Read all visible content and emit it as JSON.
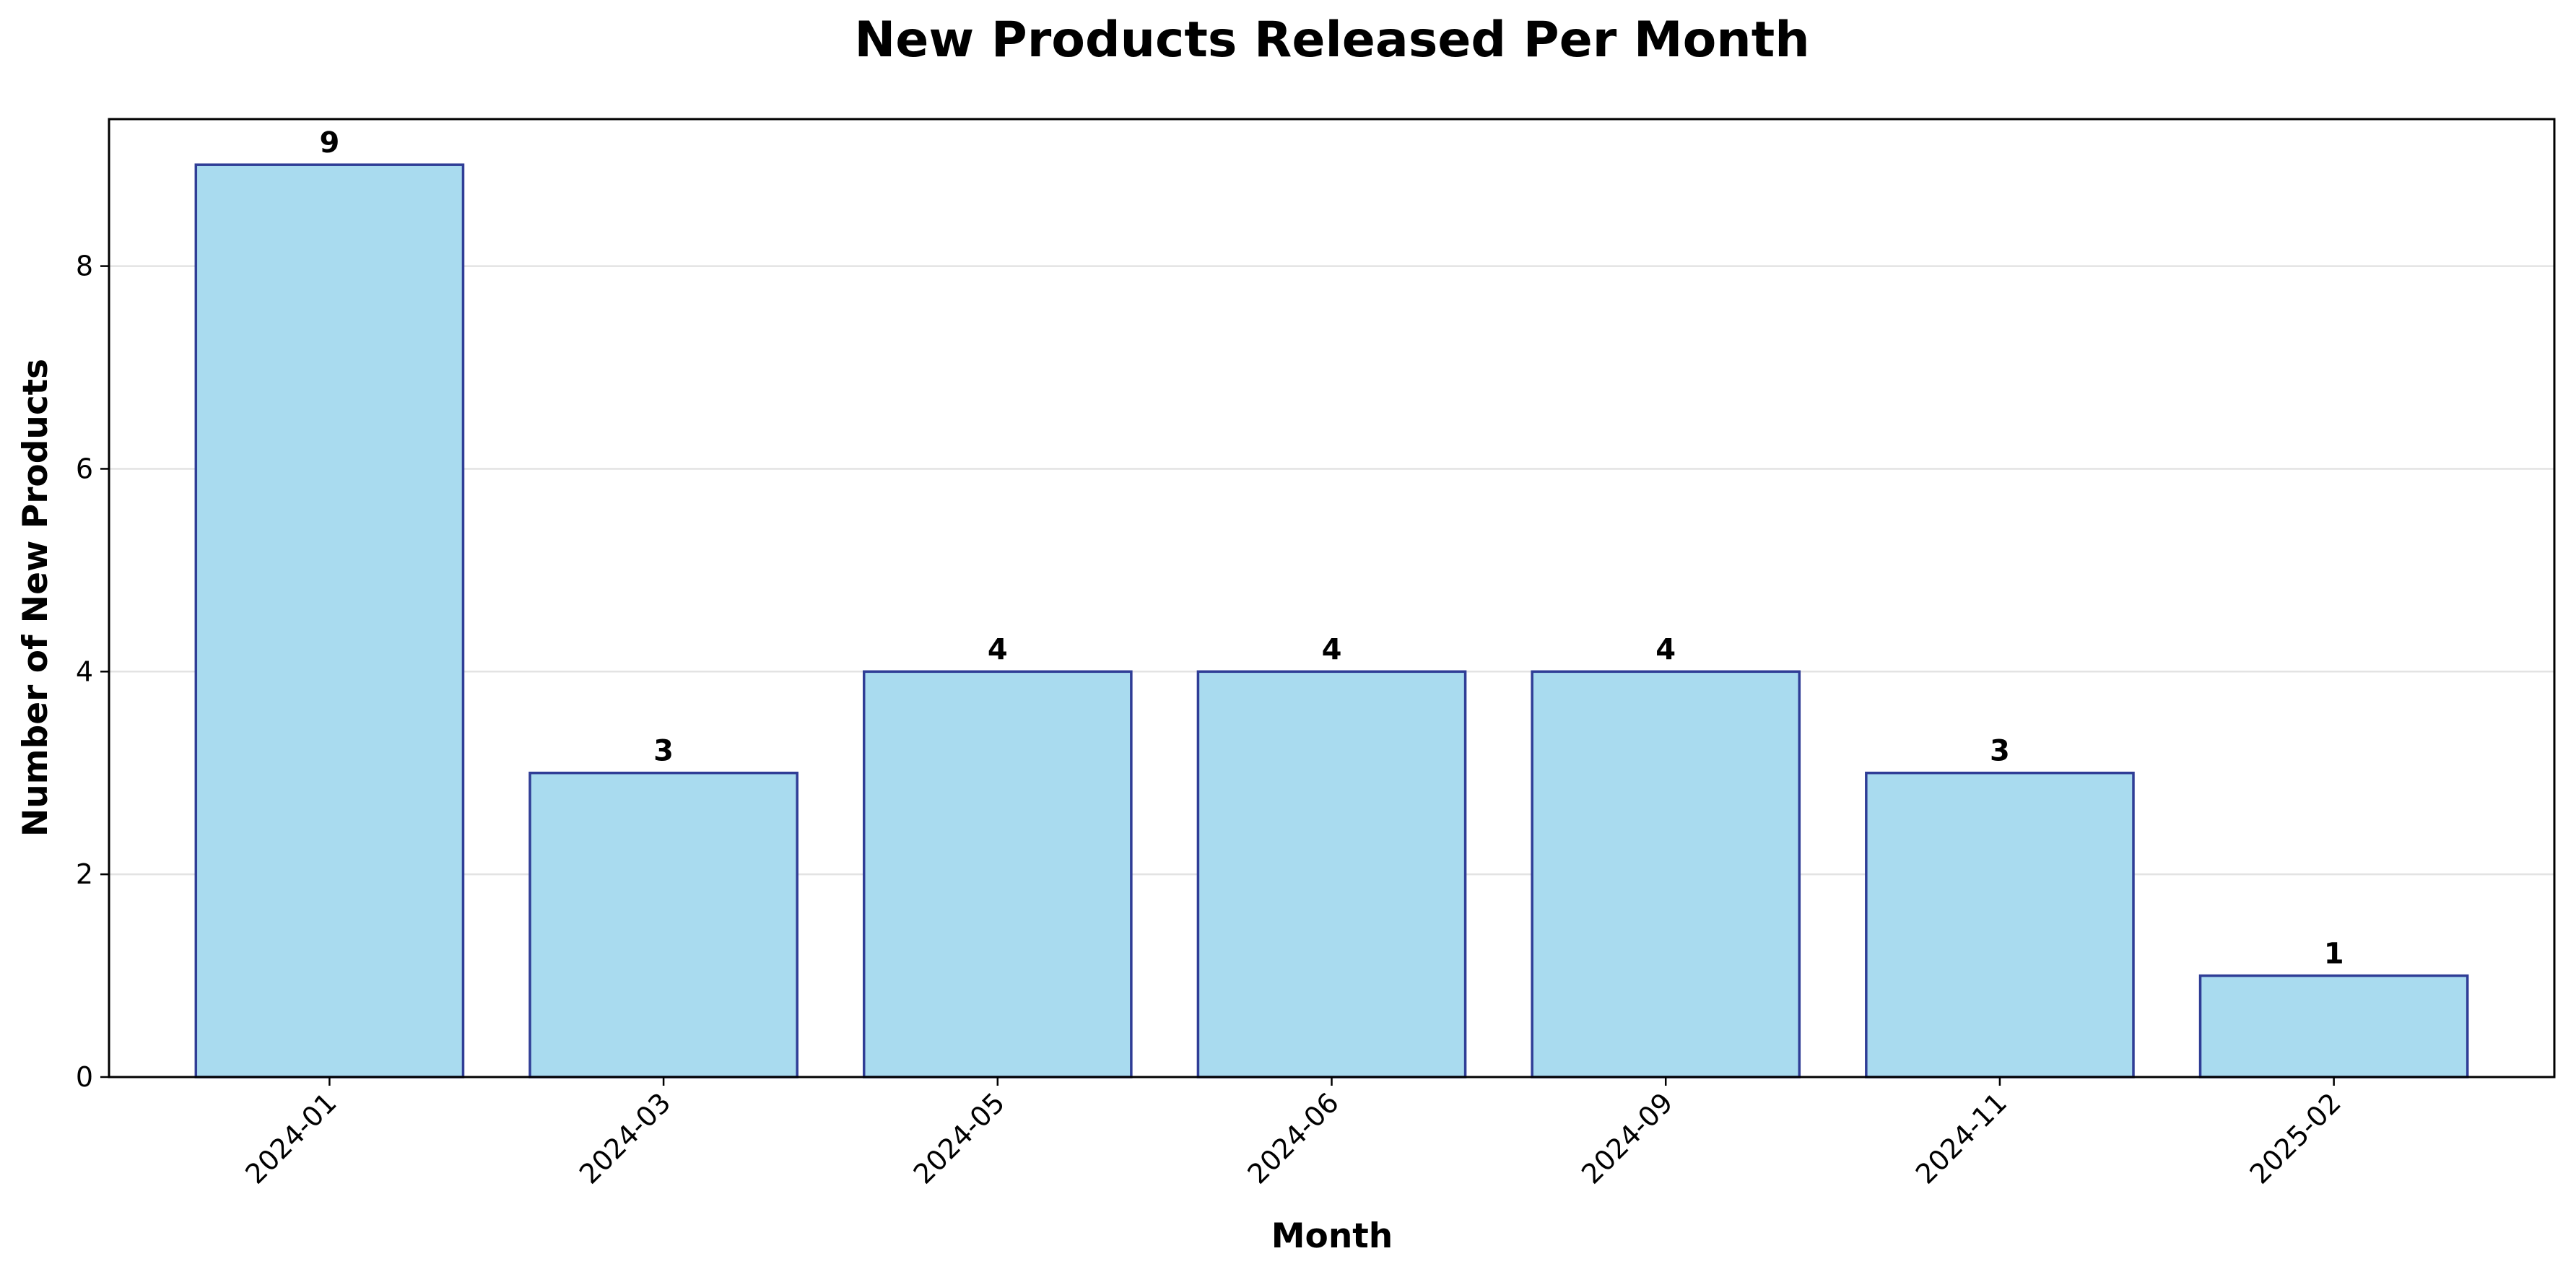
{
  "chart_data": {
    "type": "bar",
    "title": "New Products Released Per Month",
    "xlabel": "Month",
    "ylabel": "Number of New Products",
    "categories": [
      "2024-01",
      "2024-03",
      "2024-05",
      "2024-06",
      "2024-09",
      "2024-11",
      "2025-02"
    ],
    "values": [
      9,
      3,
      4,
      4,
      4,
      3,
      1
    ],
    "data_labels": [
      "9",
      "3",
      "4",
      "4",
      "4",
      "3",
      "1"
    ],
    "ylim": [
      0,
      9.45
    ],
    "yticks": [
      0,
      2,
      4,
      6,
      8
    ],
    "ytick_labels": [
      "0",
      "2",
      "4",
      "6",
      "8"
    ],
    "grid": "y",
    "bar_fill": "#a9dbef",
    "bar_edge": "#2f3d96",
    "grid_color": "#e3e3e3"
  }
}
